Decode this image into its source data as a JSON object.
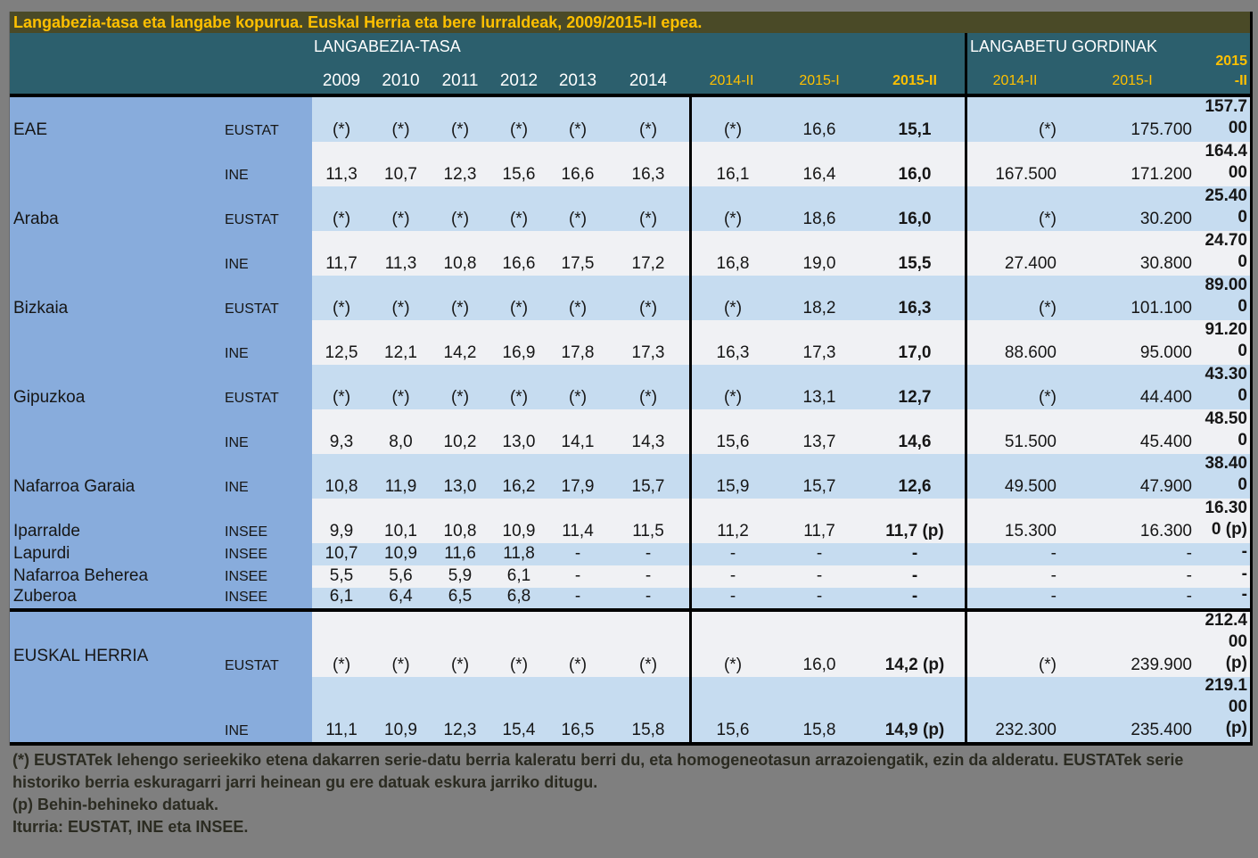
{
  "title": "Langabezia-tasa eta langabe kopurua. Euskal Herria eta bere lurraldeak, 2009/2015-II epea.",
  "header": {
    "rate_group": "LANGABEZIA-TASA",
    "gross_group": "LANGABETU GORDINAK",
    "years": [
      "2009",
      "2010",
      "2011",
      "2012",
      "2013",
      "2014"
    ],
    "rate_quarters": [
      "2014-II",
      "2015-I",
      "2015-II"
    ],
    "gross_quarters": [
      "2014-II",
      "2015-I",
      "2015\n-II"
    ]
  },
  "rows": [
    {
      "region": "EAE",
      "group_rows": 2,
      "source": "EUSTAT",
      "rates": [
        "(*)",
        "(*)",
        "(*)",
        "(*)",
        "(*)",
        "(*)"
      ],
      "quarters": [
        "(*)",
        "16,6",
        "15,1"
      ],
      "gross": [
        "(*)",
        "175.700",
        "157.700"
      ]
    },
    {
      "source": "INE",
      "rates": [
        "11,3",
        "10,7",
        "12,3",
        "15,6",
        "16,6",
        "16,3"
      ],
      "quarters": [
        "16,1",
        "16,4",
        "16,0"
      ],
      "gross": [
        "167.500",
        "171.200",
        "164.400"
      ]
    },
    {
      "region": "Araba",
      "group_rows": 2,
      "source": "EUSTAT",
      "rates": [
        "(*)",
        "(*)",
        "(*)",
        "(*)",
        "(*)",
        "(*)"
      ],
      "quarters": [
        "(*)",
        "18,6",
        "16,0"
      ],
      "gross": [
        "(*)",
        "30.200",
        "25.400"
      ]
    },
    {
      "source": "INE",
      "rates": [
        "11,7",
        "11,3",
        "10,8",
        "16,6",
        "17,5",
        "17,2"
      ],
      "quarters": [
        "16,8",
        "19,0",
        "15,5"
      ],
      "gross": [
        "27.400",
        "30.800",
        "24.700"
      ]
    },
    {
      "region": "Bizkaia",
      "group_rows": 2,
      "source": "EUSTAT",
      "rates": [
        "(*)",
        "(*)",
        "(*)",
        "(*)",
        "(*)",
        "(*)"
      ],
      "quarters": [
        "(*)",
        "18,2",
        "16,3"
      ],
      "gross": [
        "(*)",
        "101.100",
        "89.000"
      ]
    },
    {
      "source": "INE",
      "rates": [
        "12,5",
        "12,1",
        "14,2",
        "16,9",
        "17,8",
        "17,3"
      ],
      "quarters": [
        "16,3",
        "17,3",
        "17,0"
      ],
      "gross": [
        "88.600",
        "95.000",
        "91.200"
      ]
    },
    {
      "region": "Gipuzkoa",
      "group_rows": 2,
      "source": "EUSTAT",
      "rates": [
        "(*)",
        "(*)",
        "(*)",
        "(*)",
        "(*)",
        "(*)"
      ],
      "quarters": [
        "(*)",
        "13,1",
        "12,7"
      ],
      "gross": [
        "(*)",
        "44.400",
        "43.300"
      ]
    },
    {
      "source": "INE",
      "rates": [
        "9,3",
        "8,0",
        "10,2",
        "13,0",
        "14,1",
        "14,3"
      ],
      "quarters": [
        "15,6",
        "13,7",
        "14,6"
      ],
      "gross": [
        "51.500",
        "45.400",
        "48.500"
      ]
    },
    {
      "region": "Nafarroa Garaia",
      "group_rows": 1,
      "source": "INE",
      "rates": [
        "10,8",
        "11,9",
        "13,0",
        "16,2",
        "17,9",
        "15,7"
      ],
      "quarters": [
        "15,9",
        "15,7",
        "12,6"
      ],
      "gross": [
        "49.500",
        "47.900",
        "38.400"
      ]
    },
    {
      "region": "Iparralde",
      "group_rows": 1,
      "source": "INSEE",
      "rates": [
        "9,9",
        "10,1",
        "10,8",
        "10,9",
        "11,4",
        "11,5"
      ],
      "quarters": [
        "11,2",
        "11,7",
        "11,7 (p)"
      ],
      "gross": [
        "15.300",
        "16.300",
        "16.300 (p)"
      ]
    },
    {
      "region": "Lapurdi",
      "group_rows": 1,
      "source": "INSEE",
      "rates": [
        "10,7",
        "10,9",
        "11,6",
        "11,8",
        "-",
        "-"
      ],
      "quarters": [
        "-",
        "-",
        "-"
      ],
      "gross": [
        "-",
        "-",
        "-"
      ]
    },
    {
      "region": "Nafarroa Beherea",
      "group_rows": 1,
      "source": "INSEE",
      "rates": [
        "5,5",
        "5,6",
        "5,9",
        "6,1",
        "-",
        "-"
      ],
      "quarters": [
        "-",
        "-",
        "-"
      ],
      "gross": [
        "-",
        "-",
        "-"
      ]
    },
    {
      "region": "Zuberoa",
      "group_rows": 1,
      "source": "INSEE",
      "rates": [
        "6,1",
        "6,4",
        "6,5",
        "6,8",
        "-",
        "-"
      ],
      "quarters": [
        "-",
        "-",
        "-"
      ],
      "gross": [
        "-",
        "-",
        "-"
      ]
    },
    {
      "region": "EUSKAL HERRIA",
      "group_rows": 2,
      "source": "EUSTAT",
      "rates": [
        "(*)",
        "(*)",
        "(*)",
        "(*)",
        "(*)",
        "(*)"
      ],
      "quarters": [
        "(*)",
        "16,0",
        "14,2 (p)"
      ],
      "gross": [
        "(*)",
        "239.900",
        "212.400 (p)"
      ]
    },
    {
      "source": "INE",
      "rates": [
        "11,1",
        "10,9",
        "12,3",
        "15,4",
        "16,5",
        "15,8"
      ],
      "quarters": [
        "15,6",
        "15,8",
        "14,9 (p)"
      ],
      "gross": [
        "232.300",
        "235.400",
        "219.100 (p)"
      ]
    }
  ],
  "notes": [
    "(*) EUSTATek lehengo serieekiko etena dakarren serie-datu berria kaleratu berri du, eta homogeneotasun arrazoiengatik, ezin da alderatu. EUSTATek serie",
    "historiko berria eskuragarri jarri heinean gu ere datuak eskura jarriko ditugu.",
    "(p) Behin-behineko datuak.",
    "Iturria: EUSTAT, INE eta INSEE."
  ],
  "colors": {
    "page_bg": "#7F7F7F",
    "title_bg": "#4A4A27",
    "accent_gold": "#FFC000",
    "header_teal": "#2C5F6D",
    "panel_blue": "#88ACDC",
    "row_blue": "#C6DCF0",
    "row_light": "#F0F1F4"
  }
}
